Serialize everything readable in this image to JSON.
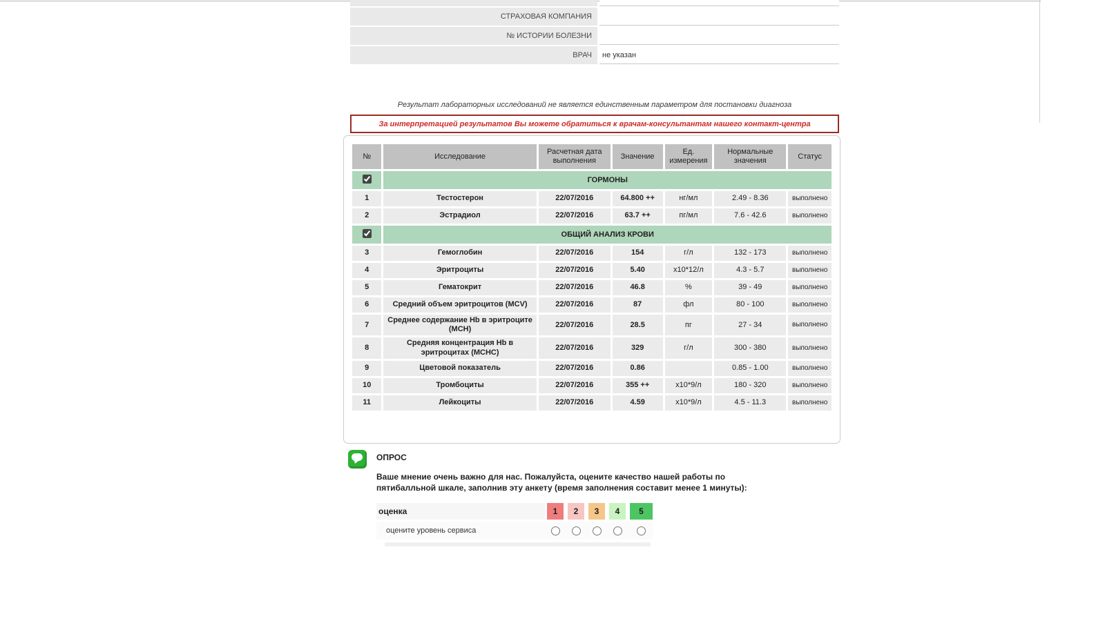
{
  "form": {
    "rows": [
      {
        "label": "СТРАХОВАЯ КОМПАНИЯ",
        "value": ""
      },
      {
        "label": "№ ИСТОРИИ БОЛЕЗНИ",
        "value": ""
      },
      {
        "label": "ВРАЧ",
        "value": "не указан"
      }
    ]
  },
  "notices": {
    "info": "Результат лабораторных  исследований не является единственным параметром для постановки диагноза",
    "warning": "За интерпретацией результатов Вы можете обратиться к врачам-консультантам нашего контакт-центра"
  },
  "results_table": {
    "headers": [
      "№",
      "Исследование",
      "Расчетная дата выполнения",
      "Значение",
      "Ед. измерения",
      "Нормальные значения",
      "Статус"
    ],
    "sections": [
      {
        "type": "group",
        "title": "ГОРМОНЫ",
        "checked": true
      },
      {
        "type": "row",
        "num": "1",
        "name": "Тестостерон",
        "date": "22/07/2016",
        "value": "64.800 ++",
        "unit": "нг/мл",
        "normal": "2.49 - 8.36",
        "status": "выполнено"
      },
      {
        "type": "row",
        "num": "2",
        "name": "Эстрадиол",
        "date": "22/07/2016",
        "value": "63.7 ++",
        "unit": "пг/мл",
        "normal": "7.6 - 42.6",
        "status": "выполнено"
      },
      {
        "type": "group",
        "title": "ОБЩИЙ АНАЛИЗ КРОВИ",
        "checked": true
      },
      {
        "type": "row",
        "num": "3",
        "name": "Гемоглобин",
        "date": "22/07/2016",
        "value": "154",
        "unit": "г/л",
        "normal": "132 - 173",
        "status": "выполнено"
      },
      {
        "type": "row",
        "num": "4",
        "name": "Эритроциты",
        "date": "22/07/2016",
        "value": "5.40",
        "unit": "x10*12/л",
        "normal": "4.3 - 5.7",
        "status": "выполнено"
      },
      {
        "type": "row",
        "num": "5",
        "name": "Гематокрит",
        "date": "22/07/2016",
        "value": "46.8",
        "unit": "%",
        "normal": "39 - 49",
        "status": "выполнено"
      },
      {
        "type": "row",
        "num": "6",
        "name": "Средний объем эритроцитов (MCV)",
        "date": "22/07/2016",
        "value": "87",
        "unit": "фл",
        "normal": "80 - 100",
        "status": "выполнено"
      },
      {
        "type": "row",
        "num": "7",
        "name": "Среднее содержание Hb в эритроците (MCH)",
        "date": "22/07/2016",
        "value": "28.5",
        "unit": "пг",
        "normal": "27 - 34",
        "status": "выполнено"
      },
      {
        "type": "row",
        "num": "8",
        "name": "Средняя концентрация Hb в эритроцитах (MCHC)",
        "date": "22/07/2016",
        "value": "329",
        "unit": "г/л",
        "normal": "300 - 380",
        "status": "выполнено"
      },
      {
        "type": "row",
        "num": "9",
        "name": "Цветовой показатель",
        "date": "22/07/2016",
        "value": "0.86",
        "unit": "",
        "normal": "0.85 - 1.00",
        "status": "выполнено"
      },
      {
        "type": "row",
        "num": "10",
        "name": "Тромбоциты",
        "date": "22/07/2016",
        "value": "355 ++",
        "unit": "x10*9/л",
        "normal": "180 - 320",
        "status": "выполнено"
      },
      {
        "type": "row",
        "num": "11",
        "name": "Лейкоциты",
        "date": "22/07/2016",
        "value": "4.59",
        "unit": "x10*9/л",
        "normal": "4.5 - 11.3",
        "status": "выполнено"
      }
    ]
  },
  "survey": {
    "title": "ОПРОС",
    "text": "Ваше мнение очень важно для нас. Пожалуйста, оцените качество нашей работы по пятибалльной шкале, заполнив эту анкету (время заполнения составит менее 1 минуты):",
    "scale_label": "оценка",
    "scale": [
      {
        "label": "1",
        "color": "#ee7d7d",
        "wide": false
      },
      {
        "label": "2",
        "color": "#f7c6c2",
        "wide": false
      },
      {
        "label": "3",
        "color": "#f6c689",
        "wide": false
      },
      {
        "label": "4",
        "color": "#c9f3c1",
        "wide": false
      },
      {
        "label": "5",
        "color": "#4ec563",
        "wide": true
      }
    ],
    "questions": [
      {
        "label": "оцените уровень сервиса"
      }
    ]
  },
  "colors": {
    "group_band": "#aed6ba",
    "header_cell": "#c2c1c1",
    "row_bg": "#ebebeb",
    "warning_border": "#9c2a21",
    "warning_text": "#cc2a27",
    "survey_icon": "#2eb135"
  }
}
